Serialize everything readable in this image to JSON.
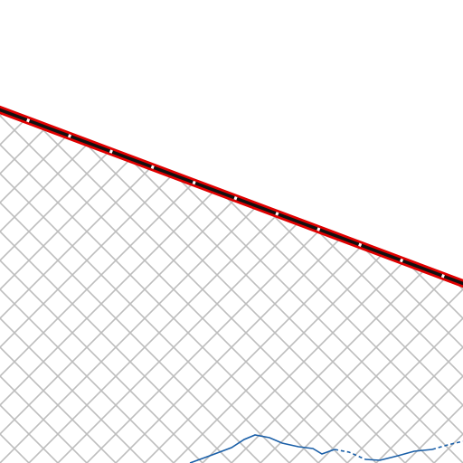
{
  "map": {
    "colors": {
      "background": "#ffffff",
      "hatch": "#bdbdbd",
      "boundary_outer": "#e00000",
      "boundary_inner": "#111111",
      "boundary_gap": "#ffffff",
      "water": "#1a5fa8"
    },
    "layers": [
      {
        "name": "hatched-area",
        "kind": "polygon-pattern"
      },
      {
        "name": "boundary-line",
        "kind": "dashed-casing"
      },
      {
        "name": "river-line",
        "kind": "polyline"
      }
    ]
  }
}
